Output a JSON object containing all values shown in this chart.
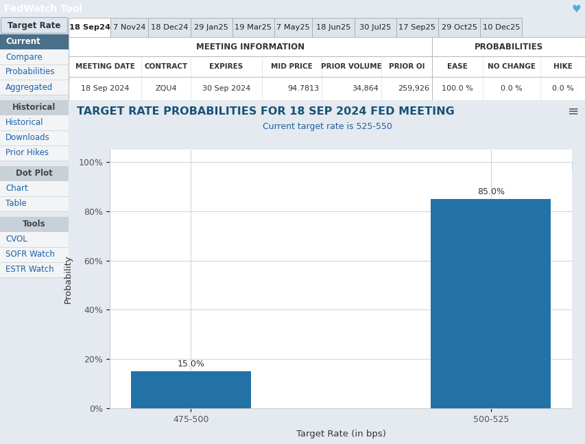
{
  "title": "TARGET RATE PROBABILITIES FOR 18 SEP 2024 FED MEETING",
  "subtitle": "Current target rate is 525-550",
  "xlabel": "Target Rate (in bps)",
  "ylabel": "Probability",
  "categories": [
    "475-500",
    "500-525"
  ],
  "values": [
    15.0,
    85.0
  ],
  "bar_color": "#2272a8",
  "bar_labels": [
    "15.0%",
    "85.0%"
  ],
  "yticks": [
    0,
    20,
    40,
    60,
    80,
    100
  ],
  "ytick_labels": [
    "0%",
    "20%",
    "40%",
    "60%",
    "80%",
    "100%"
  ],
  "ylim": [
    0,
    105
  ],
  "header_bg": "#4a6f8a",
  "header_text": "#ffffff",
  "sidebar_section_bg": "#c8d0d8",
  "active_tab_bg": "#ffffff",
  "tab_bg": "#dde4ea",
  "chart_bg": "#ffffff",
  "outer_bg": "#e4eaf0",
  "title_color": "#1a5276",
  "subtitle_color": "#2060a0",
  "grid_color": "#d0d0d0",
  "app_title": "FedWatch Tool",
  "tabs": [
    "18 Sep24",
    "7 Nov24",
    "18 Dec24",
    "29 Jan25",
    "19 Mar25",
    "7 May25",
    "18 Jun25",
    "30 Jul25",
    "17 Sep25",
    "29 Oct25",
    "10 Dec25"
  ],
  "active_tab": "18 Sep24",
  "meeting_info_headers": [
    "MEETING DATE",
    "CONTRACT",
    "EXPIRES",
    "MID PRICE",
    "PRIOR VOLUME",
    "PRIOR OI"
  ],
  "meeting_info_values": [
    "18 Sep 2024",
    "ZQU4",
    "30 Sep 2024",
    "94.7813",
    "34,864",
    "259,926"
  ],
  "prob_headers": [
    "EASE",
    "NO CHANGE",
    "HIKE"
  ],
  "prob_values": [
    "100.0 %",
    "0.0 %",
    "0.0 %"
  ],
  "sidebar_items": [
    {
      "label": "Target Rate",
      "type": "button"
    },
    {
      "label": "Current",
      "type": "active"
    },
    {
      "label": "Compare",
      "type": "item"
    },
    {
      "label": "Probabilities",
      "type": "item"
    },
    {
      "label": "Aggregated",
      "type": "item"
    },
    {
      "label": "Historical",
      "type": "section"
    },
    {
      "label": "Historical",
      "type": "item"
    },
    {
      "label": "Downloads",
      "type": "item"
    },
    {
      "label": "Prior Hikes",
      "type": "item"
    },
    {
      "label": "Dot Plot",
      "type": "section"
    },
    {
      "label": "Chart",
      "type": "item"
    },
    {
      "label": "Table",
      "type": "item"
    },
    {
      "label": "Tools",
      "type": "section"
    },
    {
      "label": "CVOL",
      "type": "item"
    },
    {
      "label": "SOFR Watch",
      "type": "item"
    },
    {
      "label": "ESTR Watch",
      "type": "item"
    }
  ]
}
